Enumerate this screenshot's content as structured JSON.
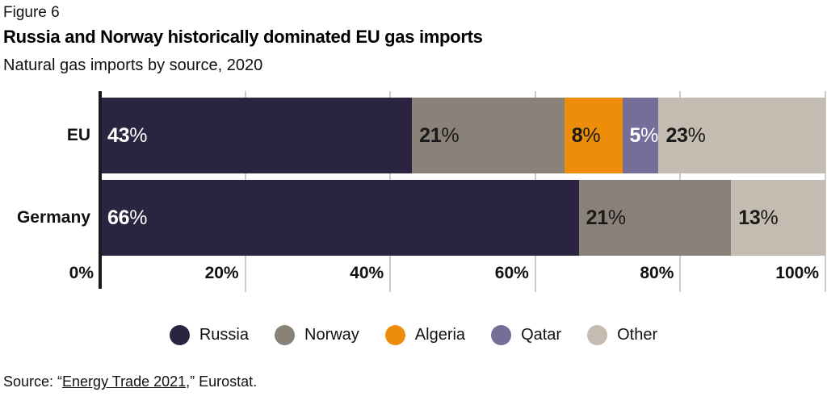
{
  "figure_label": "Figure 6",
  "title": "Russia and Norway historically dominated EU gas imports",
  "subtitle": "Natural gas imports by source, 2020",
  "source": {
    "prefix": "Source: “",
    "link_text": "Energy Trade 2021",
    "suffix": ",” Eurostat."
  },
  "colors": {
    "background": "#ffffff",
    "axis_line": "#1a1a1a",
    "gridline": "#cccccc",
    "text": "#111111"
  },
  "chart_data": {
    "type": "bar",
    "orientation": "horizontal",
    "stacked": true,
    "grid": true,
    "legend_position": "bottom",
    "categories": [
      "EU",
      "Germany"
    ],
    "series": [
      {
        "name": "Russia",
        "color": "#2a2440",
        "label_color": "#ffffff",
        "values": [
          43,
          66
        ]
      },
      {
        "name": "Norway",
        "color": "#8a8279",
        "label_color": "#1a1a1a",
        "values": [
          21,
          21
        ]
      },
      {
        "name": "Algeria",
        "color": "#ee8d0a",
        "label_color": "#1a1a1a",
        "values": [
          8,
          0
        ]
      },
      {
        "name": "Qatar",
        "color": "#746e99",
        "label_color": "#ffffff",
        "values": [
          5,
          0
        ]
      },
      {
        "name": "Other",
        "color": "#c4bcb0",
        "label_color": "#1a1a1a",
        "values": [
          23,
          13
        ]
      }
    ],
    "value_suffix": "%",
    "x_ticks": [
      "0%",
      "20%",
      "40%",
      "60%",
      "80%",
      "100%"
    ],
    "xlim": [
      0,
      100
    ]
  }
}
